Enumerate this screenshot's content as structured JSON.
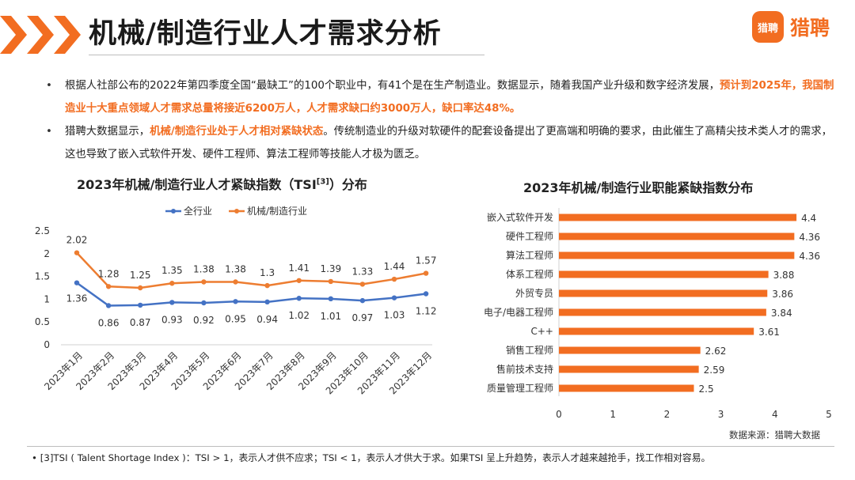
{
  "header": {
    "title": "机械/制造行业人才需求分析",
    "brand_badge": "猎聘",
    "brand_name": "猎聘",
    "accent_color": "#f26d21"
  },
  "bullets": [
    {
      "text_before": "根据人社部公布的2022年第四季度全国“最缺工”的100个职业中，有41个是在生产制造业。数据显示，随着我国产业升级和数字经济发展，",
      "highlight": "预计到2025年，我国制造业十大重点领域人才需求总量将接近6200万人，人才需求缺口约3000万人，缺口率达48%。",
      "text_after": ""
    },
    {
      "text_before": "猎聘大数据显示，",
      "highlight": "机械/制造行业处于人才相对紧缺状态",
      "text_after": "。传统制造业的升级对软硬件的配套设备提出了更高端和明确的要求，由此催生了高精尖技术类人才的需求，这也导致了嵌入式软件开发、硬件工程师、算法工程师等技能人才极为匮乏。"
    }
  ],
  "chart_data": [
    {
      "type": "line",
      "title_main": "2023年机械/制造行业人才紧缺指数（TSI",
      "title_sup": "[3]",
      "title_end": "）分布",
      "categories": [
        "2023年1月",
        "2023年2月",
        "2023年3月",
        "2023年4月",
        "2023年5月",
        "2023年6月",
        "2023年7月",
        "2023年8月",
        "2023年9月",
        "2023年10月",
        "2023年11月",
        "2023年12月"
      ],
      "series": [
        {
          "name": "全行业",
          "color": "#4472c4",
          "values": [
            1.36,
            0.86,
            0.87,
            0.93,
            0.92,
            0.95,
            0.94,
            1.02,
            1.01,
            0.97,
            1.03,
            1.12
          ]
        },
        {
          "name": "机械/制造行业",
          "color": "#ed7d31",
          "values": [
            2.02,
            1.28,
            1.25,
            1.35,
            1.38,
            1.38,
            1.3,
            1.41,
            1.39,
            1.33,
            1.44,
            1.57
          ]
        }
      ],
      "ylim": [
        0,
        2.5
      ],
      "yticks": [
        "0",
        "0.5",
        "1",
        "1.5",
        "2",
        "2.5"
      ],
      "grid": false,
      "legend": "top"
    },
    {
      "type": "bar",
      "orientation": "horizontal",
      "title": "2023年机械/制造行业职能紧缺指数分布",
      "color": "#f26d21",
      "categories": [
        "嵌入式软件开发",
        "硬件工程师",
        "算法工程师",
        "体系工程师",
        "外贸专员",
        "电子/电器工程师",
        "C++",
        "销售工程师",
        "售前技术支持",
        "质量管理工程师"
      ],
      "values": [
        4.4,
        4.36,
        4.36,
        3.88,
        3.86,
        3.84,
        3.61,
        2.62,
        2.59,
        2.5
      ],
      "value_labels": [
        "4.4",
        "4.36",
        "4.36",
        "3.88",
        "3.86",
        "3.84",
        "3.61",
        "2.62",
        "2.59",
        "2.5"
      ],
      "xlim": [
        0,
        5
      ],
      "xticks": [
        "0",
        "1",
        "2",
        "3",
        "4",
        "5"
      ]
    }
  ],
  "source": "数据来源：猎聘大数据",
  "footnote": "[3]TSI ( Talent Shortage Index )：TSI > 1，表示人才供不应求；TSI < 1，表示人才供大于求。如果TSI 呈上升趋势，表示人才越来越抢手，找工作相对容易。"
}
